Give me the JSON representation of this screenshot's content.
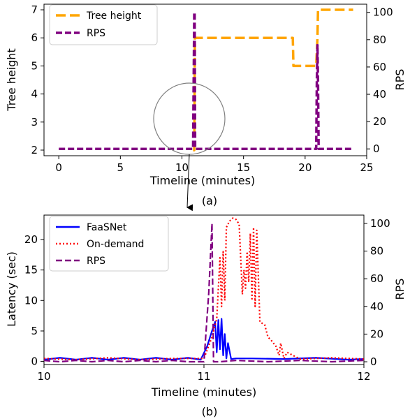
{
  "chart_data": [
    {
      "type": "line",
      "panel_label": "(a)",
      "xlabel": "Timeline (minutes)",
      "ylabel_left": "Tree height",
      "ylabel_right": "RPS",
      "xlim": [
        -1.2,
        25
      ],
      "ylim_left": [
        1.8,
        7.2
      ],
      "ylim_right": [
        -5,
        106
      ],
      "xticks": [
        0,
        5,
        10,
        15,
        20,
        25
      ],
      "yticks_left": [
        2,
        3,
        4,
        5,
        6,
        7
      ],
      "yticks_right": [
        0,
        20,
        40,
        60,
        80,
        100
      ],
      "legend_position": "top-left",
      "series": [
        {
          "name": "Tree height",
          "axis": "left",
          "color": "#ffa500",
          "style": "dashdot",
          "x": [
            10.9,
            11.0,
            11.05,
            19.0,
            19.05,
            20.9,
            21.0,
            21.05,
            23.9
          ],
          "y": [
            2,
            2,
            6,
            6,
            5,
            5,
            6,
            7,
            7
          ]
        },
        {
          "name": "RPS",
          "axis": "right",
          "color": "#800080",
          "style": "dashed",
          "x": [
            0,
            10.9,
            11.0,
            11.03,
            11.07,
            11.1,
            20.9,
            20.95,
            21.0,
            21.05,
            21.1,
            23.9
          ],
          "y": [
            0,
            0,
            100,
            100,
            0,
            0,
            0,
            50,
            76,
            50,
            0,
            0
          ]
        }
      ],
      "annotation": "circle around x=11"
    },
    {
      "type": "line",
      "panel_label": "(b)",
      "xlabel": "Timeline (minutes)",
      "ylabel_left": "Latency (sec)",
      "ylabel_right": "RPS",
      "xlim": [
        10,
        12
      ],
      "ylim_left": [
        -0.5,
        24
      ],
      "ylim_right": [
        -2,
        106
      ],
      "xticks": [
        10,
        11,
        12
      ],
      "yticks_left": [
        0,
        5,
        10,
        15,
        20
      ],
      "yticks_right": [
        0,
        20,
        40,
        60,
        80,
        100
      ],
      "legend_position": "top-left",
      "series": [
        {
          "name": "FaaSNet",
          "axis": "left",
          "color": "#0000ff",
          "style": "solid",
          "x": [
            10.0,
            10.1,
            10.2,
            10.3,
            10.4,
            10.5,
            10.6,
            10.7,
            10.8,
            10.9,
            10.98,
            11.02,
            11.05,
            11.07,
            11.08,
            11.09,
            11.1,
            11.11,
            11.12,
            11.13,
            11.14,
            11.15,
            11.17,
            11.2,
            11.3,
            11.5,
            11.7,
            11.9,
            12.0
          ],
          "y": [
            0.3,
            0.6,
            0.3,
            0.6,
            0.3,
            0.6,
            0.3,
            0.6,
            0.3,
            0.6,
            0.3,
            2.5,
            5.0,
            6.5,
            1.5,
            6.8,
            2.0,
            7.0,
            1.0,
            4.5,
            0.5,
            3.0,
            0.4,
            0.5,
            0.5,
            0.4,
            0.6,
            0.3,
            0.4
          ]
        },
        {
          "name": "On-demand",
          "axis": "left",
          "color": "#ff0000",
          "style": "dotted",
          "x": [
            10.0,
            10.2,
            10.4,
            10.6,
            10.8,
            11.0,
            11.05,
            11.08,
            11.1,
            11.11,
            11.12,
            11.13,
            11.14,
            11.16,
            11.18,
            11.2,
            11.22,
            11.24,
            11.25,
            11.26,
            11.27,
            11.28,
            11.29,
            11.3,
            11.31,
            11.32,
            11.33,
            11.35,
            11.38,
            11.4,
            11.42,
            11.45,
            11.47,
            11.48,
            11.5,
            11.52,
            11.6,
            11.8,
            12.0
          ],
          "y": [
            0.5,
            0.3,
            0.6,
            0.3,
            0.5,
            0.5,
            4.0,
            7.0,
            17.0,
            9.0,
            18.0,
            10.0,
            22.0,
            23.0,
            23.5,
            23.3,
            22.5,
            11.0,
            15.0,
            12.0,
            18.0,
            13.0,
            21.0,
            10.0,
            22.0,
            9.0,
            21.5,
            6.5,
            6.0,
            4.0,
            3.5,
            2.5,
            1.0,
            3.0,
            0.5,
            1.5,
            0.4,
            0.6,
            0.4
          ]
        },
        {
          "name": "RPS",
          "axis": "right",
          "color": "#800080",
          "style": "dashed",
          "x": [
            10.0,
            10.1,
            10.2,
            10.3,
            10.4,
            10.5,
            10.6,
            10.7,
            10.8,
            10.9,
            11.0,
            11.03,
            11.05,
            11.06,
            11.1,
            11.2,
            11.4,
            11.6,
            11.8,
            12.0
          ],
          "y": [
            1,
            0,
            1,
            0,
            1,
            0,
            1,
            0,
            1,
            0,
            0,
            50,
            100,
            0,
            0,
            1,
            0,
            1,
            0,
            1
          ]
        }
      ]
    }
  ]
}
